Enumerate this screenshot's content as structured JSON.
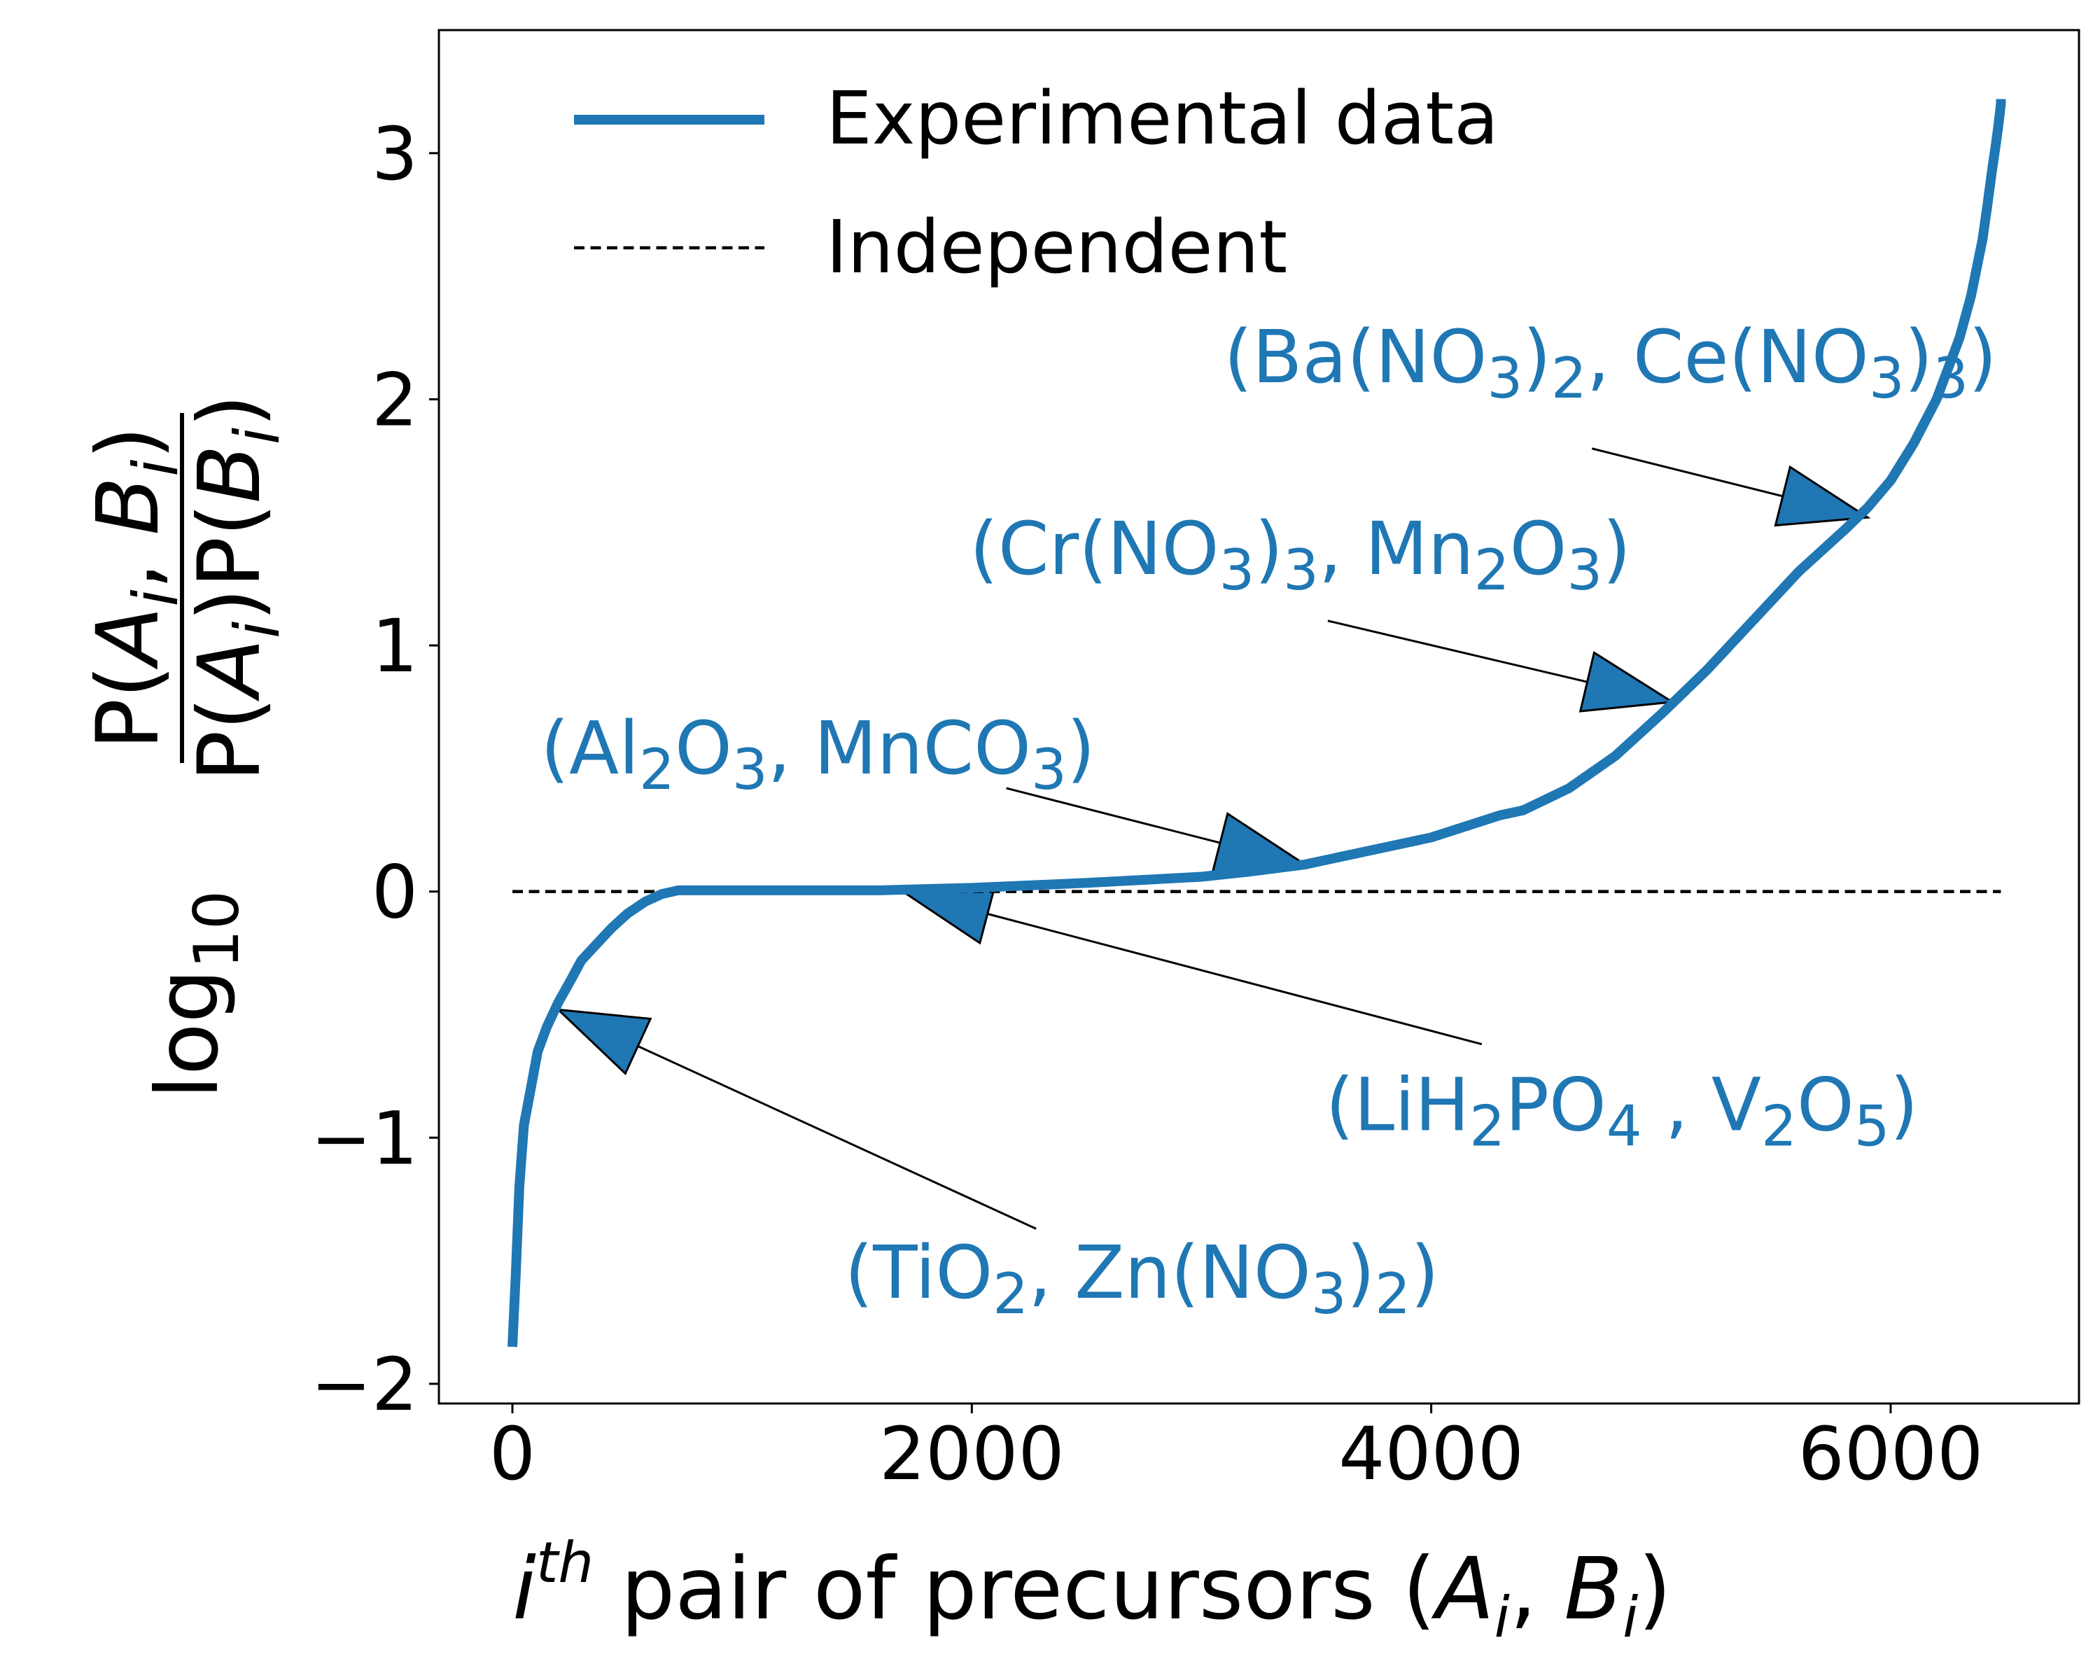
{
  "chart_data": {
    "type": "line",
    "xlabel": "i^th pair of precursors (A_i, B_i)",
    "ylabel": "log10 P(A_i, B_i) / P(A_i)P(B_i)",
    "xlim": [
      -320,
      6820
    ],
    "ylim": [
      -2.08,
      3.5
    ],
    "x_ticks": [
      0,
      2000,
      4000,
      6000
    ],
    "x_tick_labels": [
      "0",
      "2000",
      "4000",
      "6000"
    ],
    "y_ticks": [
      -2,
      -1,
      0,
      1,
      2,
      3
    ],
    "y_tick_labels": [
      "−2",
      "−1",
      "0",
      "1",
      "2",
      "3"
    ],
    "grid": false,
    "legend_position": "top-left",
    "series": [
      {
        "name": "Experimental data",
        "style": "solid",
        "color": "#1f77b4",
        "x": [
          0,
          15,
          30,
          50,
          80,
          110,
          150,
          200,
          260,
          300,
          360,
          430,
          500,
          580,
          650,
          700,
          720,
          800,
          1000,
          1500,
          1600,
          2000,
          2500,
          3000,
          3200,
          3450,
          3600,
          3800,
          4000,
          4200,
          4300,
          4400,
          4600,
          4800,
          5000,
          5200,
          5400,
          5600,
          5800,
          5900,
          6000,
          6100,
          6200,
          6300,
          6350,
          6400,
          6420,
          6440,
          6460,
          6470,
          6480,
          6480
        ],
        "y": [
          -1.85,
          -1.55,
          -1.2,
          -0.95,
          -0.8,
          -0.65,
          -0.55,
          -0.45,
          -0.35,
          -0.28,
          -0.22,
          -0.15,
          -0.09,
          -0.04,
          -0.01,
          0.0,
          0.005,
          0.005,
          0.005,
          0.005,
          0.005,
          0.015,
          0.035,
          0.06,
          0.08,
          0.11,
          0.14,
          0.18,
          0.22,
          0.28,
          0.31,
          0.33,
          0.42,
          0.55,
          0.72,
          0.9,
          1.1,
          1.3,
          1.47,
          1.56,
          1.67,
          1.82,
          2.0,
          2.25,
          2.42,
          2.65,
          2.78,
          2.92,
          3.05,
          3.12,
          3.2,
          3.22
        ]
      },
      {
        "name": "Independent",
        "style": "dashed",
        "color": "#000000",
        "x": [
          0,
          6480
        ],
        "y": [
          0,
          0
        ]
      }
    ],
    "annotations": [
      {
        "label_parts": [
          [
            "(Ba(NO",
            ""
          ],
          [
            "3",
            "sub"
          ],
          [
            ")",
            ""
          ],
          [
            "2",
            "sub"
          ],
          [
            ", Ce(NO",
            ""
          ],
          [
            "3",
            "sub"
          ],
          [
            ")",
            ""
          ],
          [
            "3",
            "sub"
          ],
          [
            ")",
            ""
          ]
        ],
        "text_anchor": [
          4780,
          2.07
        ],
        "line_from": [
          4700,
          1.8
        ],
        "point": [
          5900,
          1.52
        ]
      },
      {
        "label_parts": [
          [
            "(Cr(NO",
            ""
          ],
          [
            "3",
            "sub"
          ],
          [
            ")",
            ""
          ],
          [
            "3",
            "sub"
          ],
          [
            ", Mn",
            ""
          ],
          [
            "2",
            "sub"
          ],
          [
            "O",
            ""
          ],
          [
            "3",
            "sub"
          ],
          [
            ")",
            ""
          ]
        ],
        "text_anchor": [
          3430,
          1.29
        ],
        "line_from": [
          3550,
          1.1
        ],
        "point": [
          5050,
          0.77
        ]
      },
      {
        "label_parts": [
          [
            "(Al",
            ""
          ],
          [
            "2",
            "sub"
          ],
          [
            "O",
            ""
          ],
          [
            "3",
            "sub"
          ],
          [
            ", MnCO",
            ""
          ],
          [
            "3",
            "sub"
          ],
          [
            ")",
            ""
          ]
        ],
        "text_anchor": [
          1330,
          0.48
        ],
        "line_from": [
          2150,
          0.42
        ],
        "point": [
          3450,
          0.11
        ]
      },
      {
        "label_parts": [
          [
            "(LiH",
            ""
          ],
          [
            "2",
            "sub"
          ],
          [
            "PO",
            ""
          ],
          [
            "4",
            "sub"
          ],
          [
            " , V",
            ""
          ],
          [
            "2",
            "sub"
          ],
          [
            "O",
            ""
          ],
          [
            "5",
            "sub"
          ],
          [
            ")",
            ""
          ]
        ],
        "text_anchor": [
          4830,
          -0.97
        ],
        "line_from": [
          4220,
          -0.62
        ],
        "point": [
          1700,
          0.0
        ]
      },
      {
        "label_parts": [
          [
            "(TiO",
            ""
          ],
          [
            "2",
            "sub"
          ],
          [
            ", Zn(NO",
            ""
          ],
          [
            "3",
            "sub"
          ],
          [
            ")",
            ""
          ],
          [
            "2",
            "sub"
          ],
          [
            ")",
            ""
          ]
        ],
        "text_anchor": [
          2740,
          -1.65
        ],
        "line_from": [
          2280,
          -1.37
        ],
        "point": [
          200,
          -0.48
        ]
      }
    ],
    "colors": {
      "series": "#1f77b4",
      "independent": "#000000",
      "arrow_fill": "#1f77b4",
      "arrow_edge": "#000000",
      "annotation_text": "#1f77b4"
    }
  }
}
